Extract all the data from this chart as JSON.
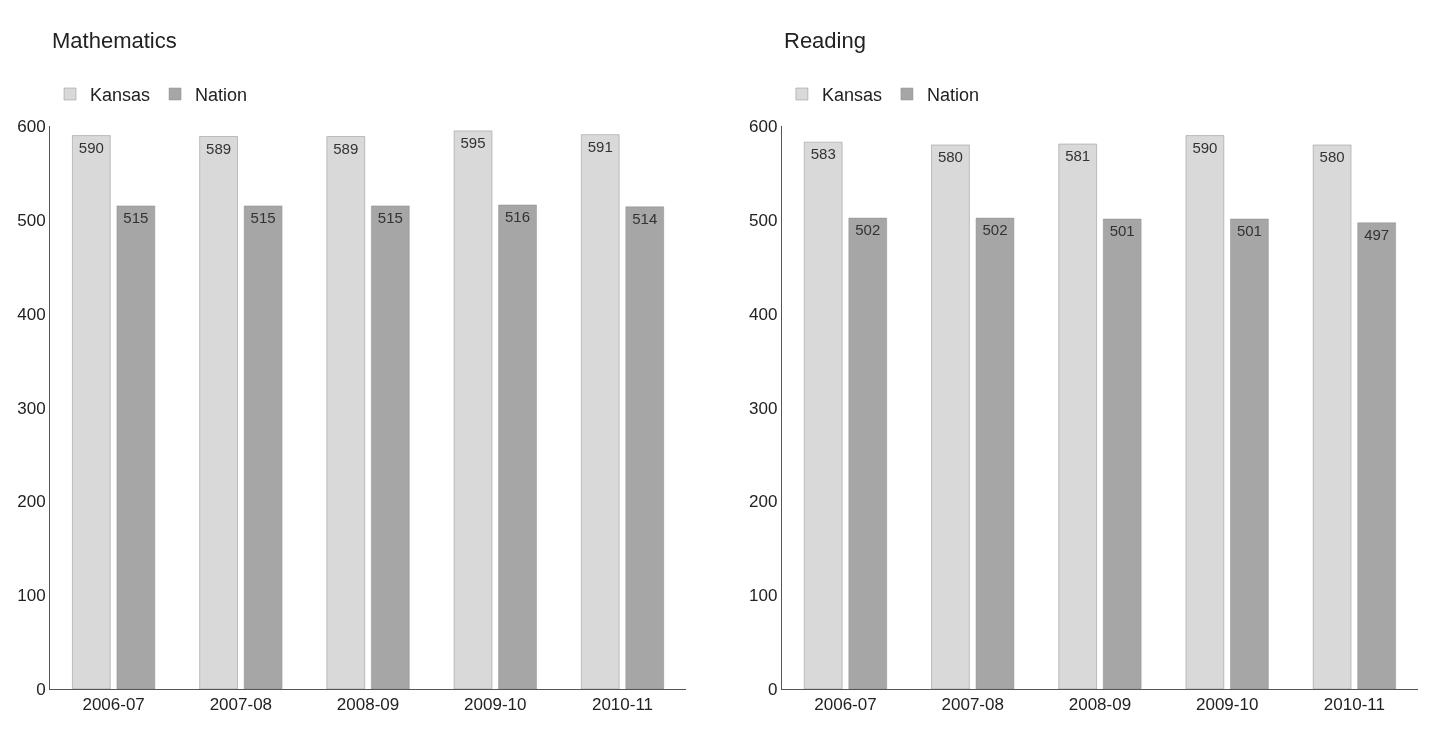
{
  "chart_data": [
    {
      "type": "bar",
      "title": "Mathematics",
      "categories": [
        "2006-07",
        "2007-08",
        "2008-09",
        "2009-10",
        "2010-11"
      ],
      "series": [
        {
          "name": "Kansas",
          "color": "#d9d9d9",
          "values": [
            590,
            589,
            589,
            595,
            591
          ]
        },
        {
          "name": "Nation",
          "color": "#a6a6a6",
          "values": [
            515,
            515,
            515,
            516,
            514
          ]
        }
      ],
      "ylim": [
        0,
        600
      ],
      "yticks": [
        0,
        100,
        200,
        300,
        400,
        500,
        600
      ],
      "legend": "top left",
      "data_labels": true
    },
    {
      "type": "bar",
      "title": "Reading",
      "categories": [
        "2006-07",
        "2007-08",
        "2008-09",
        "2009-10",
        "2010-11"
      ],
      "series": [
        {
          "name": "Kansas",
          "color": "#d9d9d9",
          "values": [
            583,
            580,
            581,
            590,
            580
          ]
        },
        {
          "name": "Nation",
          "color": "#a6a6a6",
          "values": [
            502,
            502,
            501,
            501,
            497
          ]
        }
      ],
      "ylim": [
        0,
        600
      ],
      "yticks": [
        0,
        100,
        200,
        300,
        400,
        500,
        600
      ],
      "legend": "top left",
      "data_labels": true
    }
  ]
}
